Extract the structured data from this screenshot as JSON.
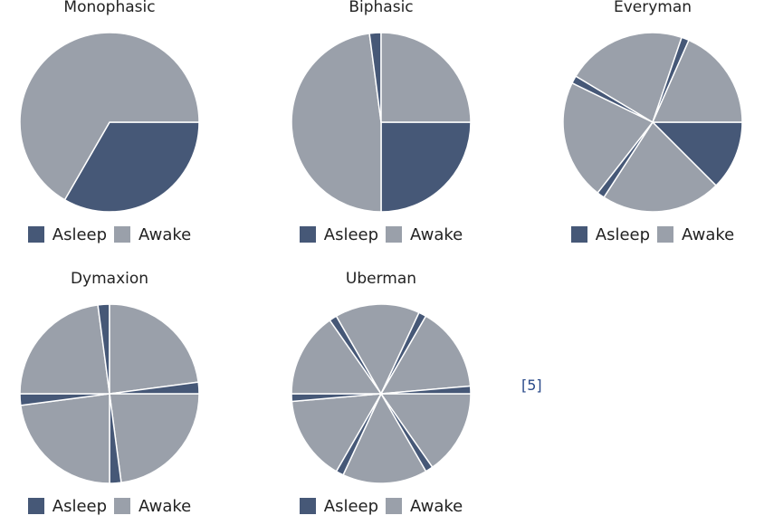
{
  "colors": {
    "asleep": "#465877",
    "awake": "#9aa0aa",
    "separator": "#ffffff"
  },
  "reference": "[5]",
  "chart_data": [
    {
      "type": "pie",
      "title": "Monophasic",
      "legend": [
        "Asleep",
        "Awake"
      ],
      "legend_position": "bottom",
      "slices": [
        {
          "label": "Asleep",
          "start_hour": 0,
          "hours": 8
        },
        {
          "label": "Awake",
          "start_hour": 8,
          "hours": 16
        }
      ]
    },
    {
      "type": "pie",
      "title": "Biphasic",
      "legend": [
        "Asleep",
        "Awake"
      ],
      "legend_position": "bottom",
      "slices": [
        {
          "label": "Asleep",
          "start_hour": 0,
          "hours": 6
        },
        {
          "label": "Awake",
          "start_hour": 6,
          "hours": 11.5
        },
        {
          "label": "Asleep",
          "start_hour": 17.5,
          "hours": 0.5
        },
        {
          "label": "Awake",
          "start_hour": 18,
          "hours": 6
        }
      ]
    },
    {
      "type": "pie",
      "title": "Everyman",
      "legend": [
        "Asleep",
        "Awake"
      ],
      "legend_position": "bottom",
      "slices": [
        {
          "label": "Asleep",
          "start_hour": 0,
          "hours": 3
        },
        {
          "label": "Awake",
          "start_hour": 3,
          "hours": 5.2
        },
        {
          "label": "Asleep",
          "start_hour": 8.2,
          "hours": 0.33
        },
        {
          "label": "Awake",
          "start_hour": 8.53,
          "hours": 5.2
        },
        {
          "label": "Asleep",
          "start_hour": 13.73,
          "hours": 0.33
        },
        {
          "label": "Awake",
          "start_hour": 14.06,
          "hours": 5.2
        },
        {
          "label": "Asleep",
          "start_hour": 19.26,
          "hours": 0.33
        },
        {
          "label": "Awake",
          "start_hour": 19.59,
          "hours": 4.41
        }
      ]
    },
    {
      "type": "pie",
      "title": "Dymaxion",
      "legend": [
        "Asleep",
        "Awake"
      ],
      "legend_position": "bottom",
      "slices": [
        {
          "label": "Awake",
          "start_hour": 0,
          "hours": 5.5
        },
        {
          "label": "Asleep",
          "start_hour": 5.5,
          "hours": 0.5
        },
        {
          "label": "Awake",
          "start_hour": 6,
          "hours": 5.5
        },
        {
          "label": "Asleep",
          "start_hour": 11.5,
          "hours": 0.5
        },
        {
          "label": "Awake",
          "start_hour": 12,
          "hours": 5.5
        },
        {
          "label": "Asleep",
          "start_hour": 17.5,
          "hours": 0.5
        },
        {
          "label": "Awake",
          "start_hour": 18,
          "hours": 5.5
        },
        {
          "label": "Asleep",
          "start_hour": 23.5,
          "hours": 0.5
        }
      ]
    },
    {
      "type": "pie",
      "title": "Uberman",
      "legend": [
        "Asleep",
        "Awake"
      ],
      "legend_position": "bottom",
      "slices": [
        {
          "label": "Awake",
          "start_hour": 0,
          "hours": 3.67
        },
        {
          "label": "Asleep",
          "start_hour": 3.67,
          "hours": 0.33
        },
        {
          "label": "Awake",
          "start_hour": 4,
          "hours": 3.67
        },
        {
          "label": "Asleep",
          "start_hour": 7.67,
          "hours": 0.33
        },
        {
          "label": "Awake",
          "start_hour": 8,
          "hours": 3.67
        },
        {
          "label": "Asleep",
          "start_hour": 11.67,
          "hours": 0.33
        },
        {
          "label": "Awake",
          "start_hour": 12,
          "hours": 3.67
        },
        {
          "label": "Asleep",
          "start_hour": 15.67,
          "hours": 0.33
        },
        {
          "label": "Awake",
          "start_hour": 16,
          "hours": 3.67
        },
        {
          "label": "Asleep",
          "start_hour": 19.67,
          "hours": 0.33
        },
        {
          "label": "Awake",
          "start_hour": 20,
          "hours": 3.67
        },
        {
          "label": "Asleep",
          "start_hour": 23.67,
          "hours": 0.33
        }
      ]
    }
  ]
}
